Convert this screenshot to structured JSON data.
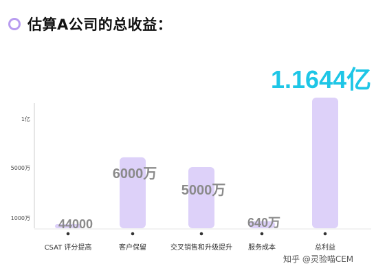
{
  "title": "估算A公司的总收益：",
  "colors": {
    "bar": "#ddd1f9",
    "value_label": "#8a8a8a",
    "highlight_value": "#1ec6e6",
    "axis": "#cccccc",
    "title_dot": "#b89cf0"
  },
  "watermark": "知乎 @灵验喵CEM",
  "chart_data": {
    "type": "bar",
    "title": "估算A公司的总收益：",
    "categories": [
      "CSAT 评分提高",
      "客户保留",
      "交叉销售和升级提升",
      "服务成本",
      "总利益"
    ],
    "values": [
      44000,
      60000000,
      50000000,
      6400000,
      116440000
    ],
    "value_labels": [
      "44000",
      "6000万",
      "5000万",
      "640万",
      "1.1644亿"
    ],
    "highlight_index": 4,
    "y_ticks": [
      {
        "value": 10000000,
        "label": "1000万"
      },
      {
        "value": 50000000,
        "label": "5000万"
      },
      {
        "value": 100000000,
        "label": "1亿"
      }
    ],
    "grid": false,
    "xlabel": "",
    "ylabel": ""
  }
}
